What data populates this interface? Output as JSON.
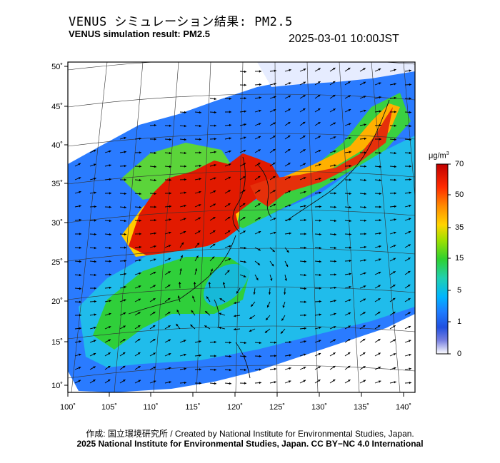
{
  "header": {
    "title_ja": "VENUS シミュレーション結果: PM2.5",
    "title_en": "VENUS simulation result: PM2.5",
    "timestamp": "2025-03-01 10:00JST"
  },
  "map": {
    "lat_labels": [
      "50˚",
      "45˚",
      "40˚",
      "35˚",
      "30˚",
      "25˚",
      "20˚",
      "15˚",
      "10˚"
    ],
    "lon_labels": [
      "100˚",
      "105˚",
      "110˚",
      "115˚",
      "120˚",
      "125˚",
      "130˚",
      "135˚",
      "140˚"
    ],
    "variable": "PM2.5 concentration with wind vectors"
  },
  "colorbar": {
    "unit_main": "μg/m",
    "unit_sup": "3",
    "ticks": [
      "70",
      "50",
      "35",
      "15",
      "5",
      "1",
      "0"
    ],
    "colors": [
      "#c00000",
      "#ff2a00",
      "#ff8a00",
      "#ffd400",
      "#a0e000",
      "#2fd12f",
      "#20d0b0",
      "#00b4ff",
      "#1e7bff",
      "#2050e0",
      "#7880e0",
      "#ffffff"
    ]
  },
  "footer": {
    "credit_line1": "作成: 国立環境研究所 / Created by National Institute for Environmental Studies, Japan.",
    "credit_line2": "2025 National Institute for Environmental Studies, Japan. CC BY−NC 4.0 International"
  }
}
